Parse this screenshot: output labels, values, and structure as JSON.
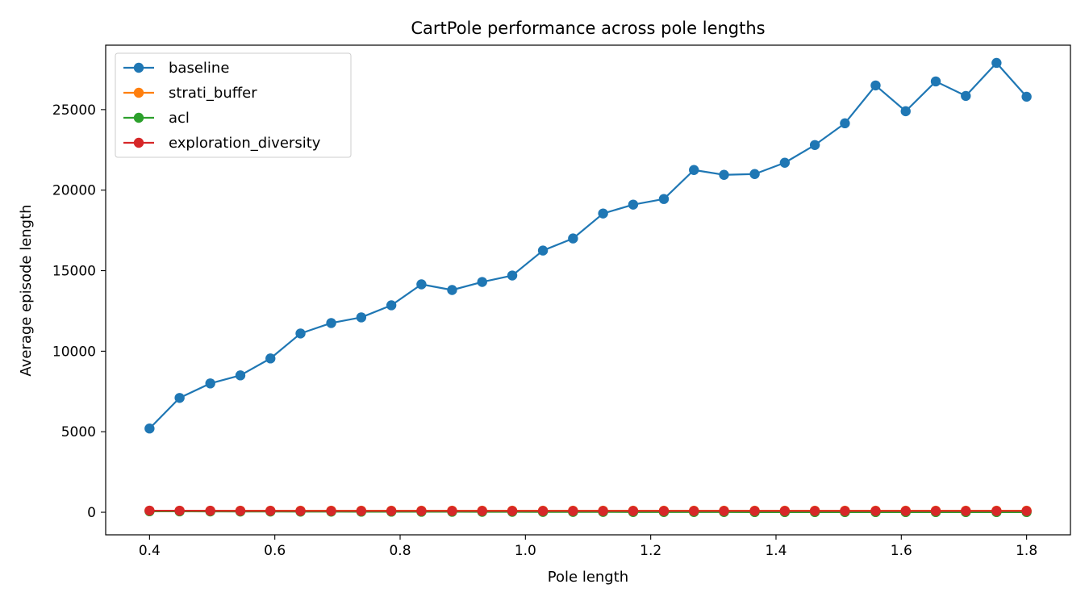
{
  "chart_data": {
    "type": "line",
    "title": "CartPole performance across pole lengths",
    "xlabel": "Pole length",
    "ylabel": "Average episode length",
    "xlim": [
      0.33,
      1.87
    ],
    "ylim": [
      -1400,
      29000
    ],
    "xticks": [
      0.4,
      0.6,
      0.8,
      1.0,
      1.2,
      1.4,
      1.6,
      1.8
    ],
    "xtick_labels": [
      "0.4",
      "0.6",
      "0.8",
      "1.0",
      "1.2",
      "1.4",
      "1.6",
      "1.8"
    ],
    "yticks": [
      0,
      5000,
      10000,
      15000,
      20000,
      25000
    ],
    "ytick_labels": [
      "0",
      "5000",
      "10000",
      "15000",
      "20000",
      "25000"
    ],
    "grid": false,
    "legend_position": "top-left",
    "x": [
      0.4,
      0.448,
      0.497,
      0.545,
      0.593,
      0.641,
      0.69,
      0.738,
      0.786,
      0.834,
      0.883,
      0.931,
      0.979,
      1.028,
      1.076,
      1.124,
      1.172,
      1.221,
      1.269,
      1.317,
      1.366,
      1.414,
      1.462,
      1.51,
      1.559,
      1.607,
      1.655,
      1.703,
      1.752,
      1.8
    ],
    "series": [
      {
        "name": "baseline",
        "color": "#1f77b4",
        "values": [
          5200,
          7100,
          8000,
          8500,
          9550,
          11100,
          11750,
          12100,
          12850,
          14150,
          13800,
          14300,
          14700,
          16250,
          17000,
          18550,
          19100,
          19450,
          21250,
          20950,
          21000,
          21700,
          22800,
          24150,
          26500,
          24900,
          26750,
          25850,
          27900,
          25800
        ]
      },
      {
        "name": "strati_buffer",
        "color": "#ff7f0e",
        "values": [
          100,
          100,
          100,
          100,
          100,
          100,
          100,
          100,
          100,
          100,
          100,
          100,
          100,
          100,
          100,
          100,
          100,
          100,
          100,
          100,
          100,
          100,
          100,
          100,
          100,
          100,
          100,
          100,
          100,
          100
        ]
      },
      {
        "name": "acl",
        "color": "#2ca02c",
        "values": [
          60,
          55,
          50,
          45,
          45,
          40,
          40,
          35,
          35,
          30,
          30,
          25,
          25,
          20,
          20,
          20,
          15,
          15,
          15,
          15,
          10,
          10,
          10,
          10,
          10,
          10,
          10,
          10,
          10,
          10
        ]
      },
      {
        "name": "exploration_diversity",
        "color": "#d62728",
        "values": [
          100,
          95,
          90,
          85,
          85,
          80,
          80,
          80,
          80,
          80,
          80,
          80,
          80,
          80,
          80,
          80,
          80,
          80,
          80,
          80,
          80,
          80,
          80,
          80,
          80,
          80,
          80,
          80,
          80,
          80
        ]
      }
    ]
  }
}
